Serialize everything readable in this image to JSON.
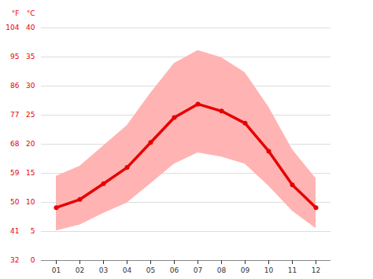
{
  "chart_data": {
    "type": "line",
    "categories": [
      "01",
      "02",
      "03",
      "04",
      "05",
      "06",
      "07",
      "08",
      "09",
      "10",
      "11",
      "12"
    ],
    "ylabel": "°C",
    "y2label": "°F",
    "ylim": [
      0,
      40
    ],
    "yticks": [
      0,
      5,
      10,
      15,
      20,
      25,
      30,
      35,
      40
    ],
    "y2lim": [
      32,
      104
    ],
    "y2ticks": [
      32,
      41,
      50,
      59,
      68,
      77,
      86,
      95,
      104
    ],
    "grid": true,
    "series": [
      {
        "type": "area",
        "color": "#ffb3b3",
        "low": [
          5.1,
          6.1,
          8.1,
          9.9,
          13.2,
          16.6,
          18.5,
          17.8,
          16.6,
          12.8,
          8.5,
          5.5
        ],
        "high": [
          14.5,
          16.2,
          19.7,
          23.2,
          28.8,
          33.9,
          36.1,
          34.9,
          32.3,
          26.4,
          19.1,
          14.1
        ]
      },
      {
        "type": "line",
        "color": "#e60000",
        "marker": "circle",
        "values": [
          9.1,
          10.5,
          13.2,
          16.0,
          20.3,
          24.6,
          26.9,
          25.7,
          23.6,
          18.8,
          13.0,
          9.1
        ]
      }
    ]
  }
}
